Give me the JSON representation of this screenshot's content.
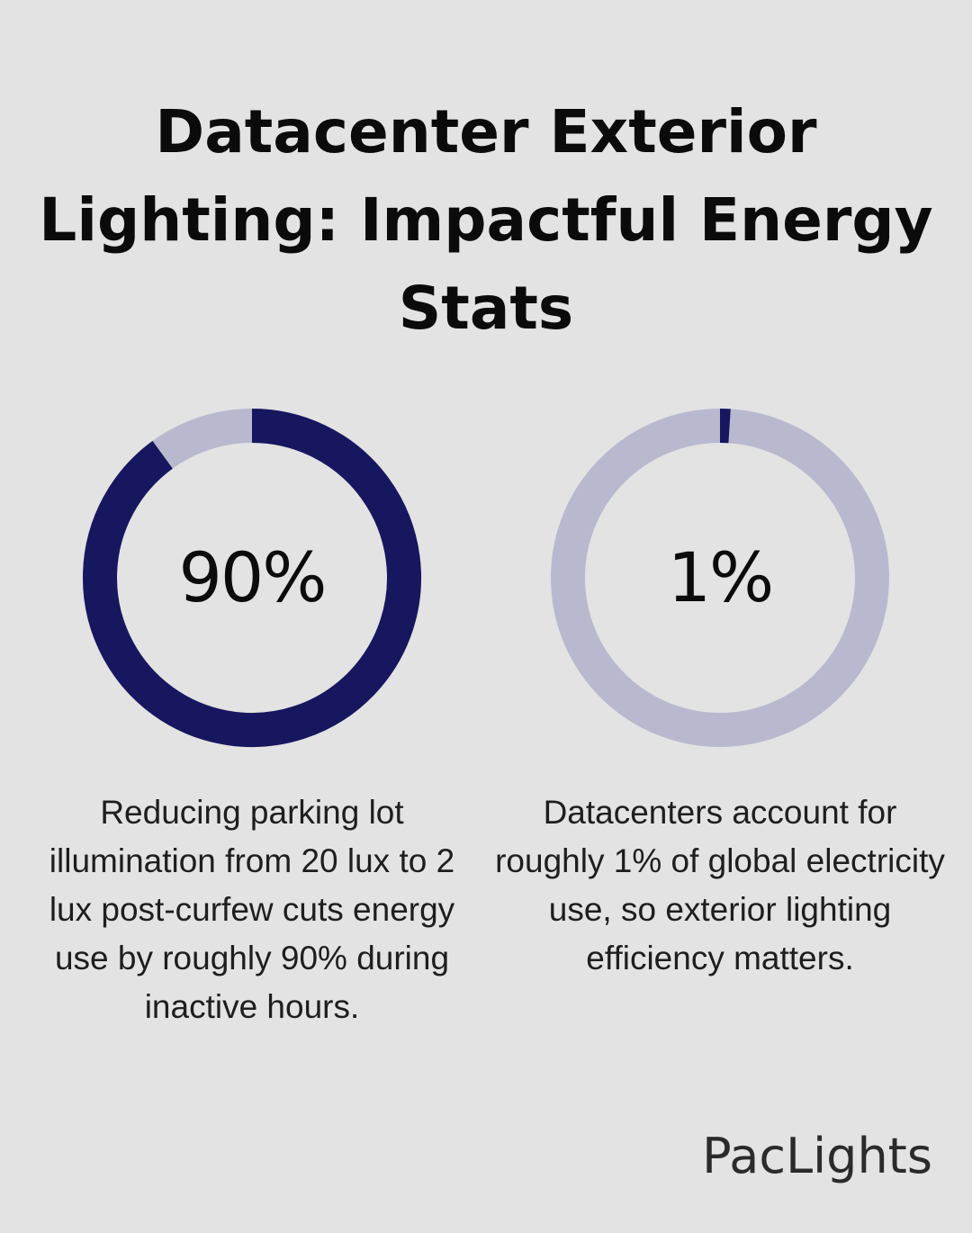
{
  "title": "Datacenter Exterior Lighting: Impactful Energy Stats",
  "colors": {
    "background": "#e2e3e2",
    "filled": "#17175f",
    "track": "#b8b9cf"
  },
  "chart_data": [
    {
      "type": "pie",
      "variant": "donut",
      "label": "90%",
      "value": 90,
      "max": 100,
      "description": "Reducing parking lot illumination from 20 lux to 2 lux post-curfew cuts energy use by roughly 90% during inactive hours."
    },
    {
      "type": "pie",
      "variant": "donut",
      "label": "1%",
      "value": 1,
      "max": 100,
      "description": "Datacenters account for roughly 1% of global electricity use, so exterior lighting efficiency matters."
    }
  ],
  "brand": "PacLights"
}
